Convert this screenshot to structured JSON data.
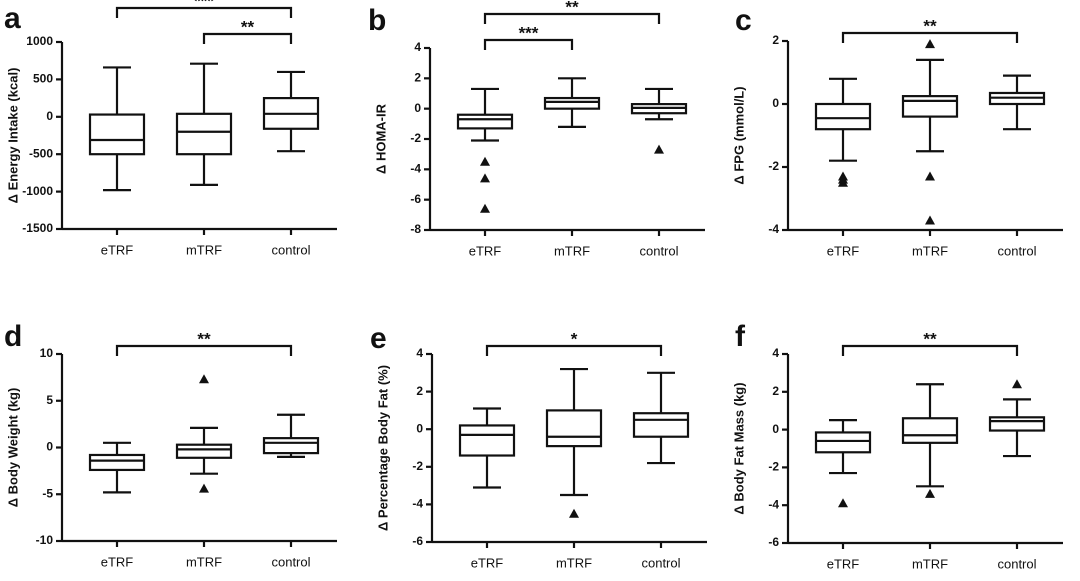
{
  "chart_data": [
    {
      "type": "box",
      "label": "a",
      "y_label": "Δ Energy Intake (kcal)",
      "categories": [
        "eTRF",
        "mTRF",
        "control"
      ],
      "boxes": [
        {
          "whislo": -980,
          "q1": -500,
          "med": -310,
          "q3": 30,
          "whishi": 660,
          "fliers": []
        },
        {
          "whislo": -910,
          "q1": -500,
          "med": -200,
          "q3": 40,
          "whishi": 710,
          "fliers": []
        },
        {
          "whislo": -460,
          "q1": -160,
          "med": 40,
          "q3": 250,
          "whishi": 600,
          "fliers": []
        }
      ],
      "ylim": [
        -1500,
        1000
      ],
      "yticks": [
        -1500,
        -1000,
        -500,
        0,
        500,
        1000
      ],
      "annotations": [
        {
          "text": "**",
          "between": [
            1,
            2
          ]
        },
        {
          "text": "***",
          "between": [
            0,
            2
          ]
        }
      ]
    },
    {
      "type": "box",
      "label": "b",
      "y_label": "Δ HOMA-IR",
      "categories": [
        "eTRF",
        "mTRF",
        "control"
      ],
      "boxes": [
        {
          "whislo": -2.1,
          "q1": -1.3,
          "med": -0.7,
          "q3": -0.4,
          "whishi": 1.3,
          "fliers": [
            -3.5,
            -4.6,
            -6.6
          ]
        },
        {
          "whislo": -1.2,
          "q1": 0,
          "med": 0.45,
          "q3": 0.7,
          "whishi": 2.0,
          "fliers": []
        },
        {
          "whislo": -0.7,
          "q1": -0.3,
          "med": 0.05,
          "q3": 0.3,
          "whishi": 1.3,
          "fliers": [
            -2.7
          ]
        }
      ],
      "ylim": [
        -8,
        4
      ],
      "yticks": [
        -8,
        -6,
        -4,
        -2,
        0,
        2,
        4
      ],
      "annotations": [
        {
          "text": "***",
          "between": [
            0,
            1
          ]
        },
        {
          "text": "**",
          "between": [
            0,
            2
          ]
        }
      ]
    },
    {
      "type": "box",
      "label": "c",
      "y_label": "Δ FPG (mmol/L)",
      "categories": [
        "eTRF",
        "mTRF",
        "control"
      ],
      "boxes": [
        {
          "whislo": -1.8,
          "q1": -0.8,
          "med": -0.45,
          "q3": 0,
          "whishi": 0.8,
          "fliers": [
            -2.5,
            -2.3,
            -2.4
          ]
        },
        {
          "whislo": -1.5,
          "q1": -0.4,
          "med": 0.1,
          "q3": 0.25,
          "whishi": 1.4,
          "fliers": [
            1.9,
            -2.3,
            -3.7
          ]
        },
        {
          "whislo": -0.8,
          "q1": 0,
          "med": 0.2,
          "q3": 0.35,
          "whishi": 0.9,
          "fliers": []
        }
      ],
      "ylim": [
        -4,
        2
      ],
      "yticks": [
        -4,
        -2,
        0,
        2
      ],
      "annotations": [
        {
          "text": "**",
          "between": [
            0,
            2
          ]
        }
      ]
    },
    {
      "type": "box",
      "label": "d",
      "y_label": "Δ Body Weight (kg)",
      "categories": [
        "eTRF",
        "mTRF",
        "control"
      ],
      "boxes": [
        {
          "whislo": -4.8,
          "q1": -2.4,
          "med": -1.4,
          "q3": -0.8,
          "whishi": 0.5,
          "fliers": []
        },
        {
          "whislo": -2.8,
          "q1": -1.1,
          "med": -0.2,
          "q3": 0.3,
          "whishi": 2.1,
          "fliers": [
            7.3,
            -4.4
          ]
        },
        {
          "whislo": -1.0,
          "q1": -0.6,
          "med": 0.5,
          "q3": 1.0,
          "whishi": 3.5,
          "fliers": []
        }
      ],
      "ylim": [
        -10,
        10
      ],
      "yticks": [
        -10,
        -5,
        0,
        5,
        10
      ],
      "annotations": [
        {
          "text": "**",
          "between": [
            0,
            2
          ]
        }
      ]
    },
    {
      "type": "box",
      "label": "e",
      "y_label": "Δ Percentage Body Fat (%)",
      "categories": [
        "eTRF",
        "mTRF",
        "control"
      ],
      "boxes": [
        {
          "whislo": -3.1,
          "q1": -1.4,
          "med": -0.3,
          "q3": 0.2,
          "whishi": 1.1,
          "fliers": []
        },
        {
          "whislo": -3.5,
          "q1": -0.9,
          "med": -0.4,
          "q3": 1.0,
          "whishi": 3.2,
          "fliers": [
            -4.5
          ]
        },
        {
          "whislo": -1.8,
          "q1": -0.4,
          "med": 0.5,
          "q3": 0.85,
          "whishi": 3.0,
          "fliers": []
        }
      ],
      "ylim": [
        -6,
        4
      ],
      "yticks": [
        -6,
        -4,
        -2,
        0,
        2,
        4
      ],
      "annotations": [
        {
          "text": "*",
          "between": [
            0,
            2
          ]
        }
      ]
    },
    {
      "type": "box",
      "label": "f",
      "y_label": "Δ Body Fat Mass (kg)",
      "categories": [
        "eTRF",
        "mTRF",
        "control"
      ],
      "boxes": [
        {
          "whislo": -2.3,
          "q1": -1.2,
          "med": -0.6,
          "q3": -0.15,
          "whishi": 0.5,
          "fliers": [
            -3.9
          ]
        },
        {
          "whislo": -3.0,
          "q1": -0.7,
          "med": -0.3,
          "q3": 0.6,
          "whishi": 2.4,
          "fliers": [
            -3.4
          ]
        },
        {
          "whislo": -1.4,
          "q1": -0.05,
          "med": 0.45,
          "q3": 0.65,
          "whishi": 1.6,
          "fliers": [
            2.4
          ]
        }
      ],
      "ylim": [
        -6,
        4
      ],
      "yticks": [
        -6,
        -4,
        -2,
        0,
        2,
        4
      ],
      "annotations": [
        {
          "text": "**",
          "between": [
            0,
            2
          ]
        }
      ]
    }
  ]
}
